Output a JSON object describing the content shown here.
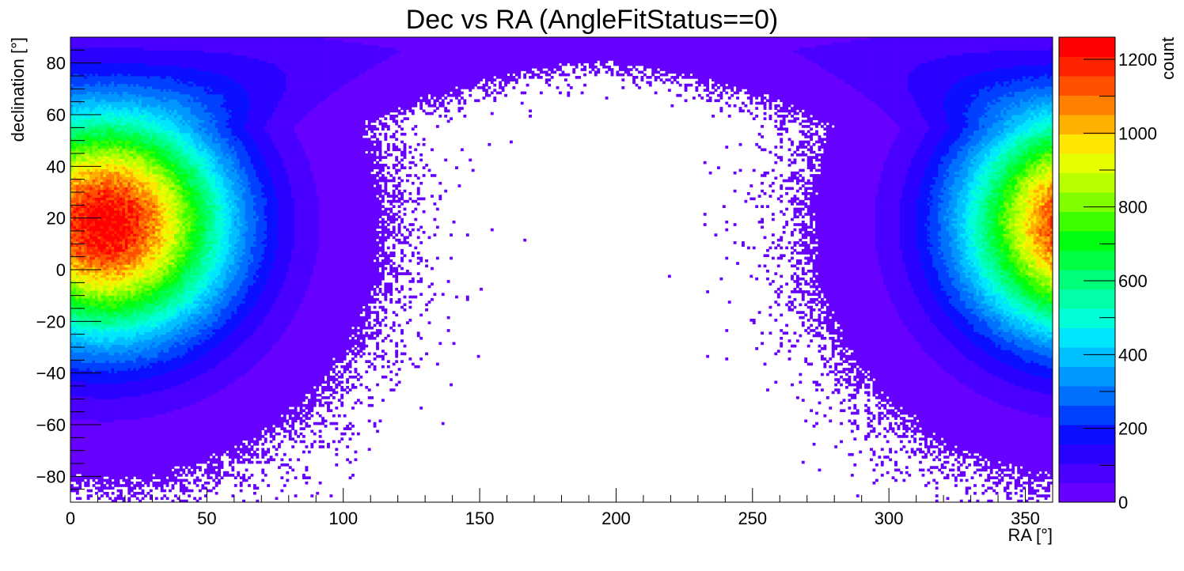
{
  "chart_data": {
    "type": "heatmap",
    "title": "Dec vs RA (AngleFitStatus==0)",
    "xlabel": "RA [°]",
    "ylabel": "declination [°]",
    "zlabel": "count",
    "xlim": [
      0,
      360
    ],
    "ylim": [
      -90,
      90
    ],
    "zlim": [
      0,
      1260
    ],
    "x_ticks": [
      "0",
      "50",
      "100",
      "150",
      "200",
      "250",
      "300",
      "350"
    ],
    "y_ticks": [
      "−80",
      "−60",
      "−40",
      "−20",
      "0",
      "20",
      "40",
      "60",
      "80"
    ],
    "z_ticks": [
      "0",
      "200",
      "400",
      "600",
      "800",
      "1000",
      "1200"
    ],
    "bin_size_deg": 1,
    "peak": {
      "ra": 13,
      "dec": 18,
      "count": 1250
    },
    "palette": [
      "#6600ff",
      "#4a00ff",
      "#2a00ff",
      "#0a10ff",
      "#0040ff",
      "#0070ff",
      "#0098ff",
      "#00c0ff",
      "#00e6ff",
      "#00ffd8",
      "#00ffa8",
      "#00ff78",
      "#00ff40",
      "#00ff10",
      "#3cff00",
      "#80ff00",
      "#b8ff00",
      "#e6ff00",
      "#ffe600",
      "#ffb000",
      "#ff8000",
      "#ff5000",
      "#ff2400",
      "#ff0000"
    ]
  }
}
